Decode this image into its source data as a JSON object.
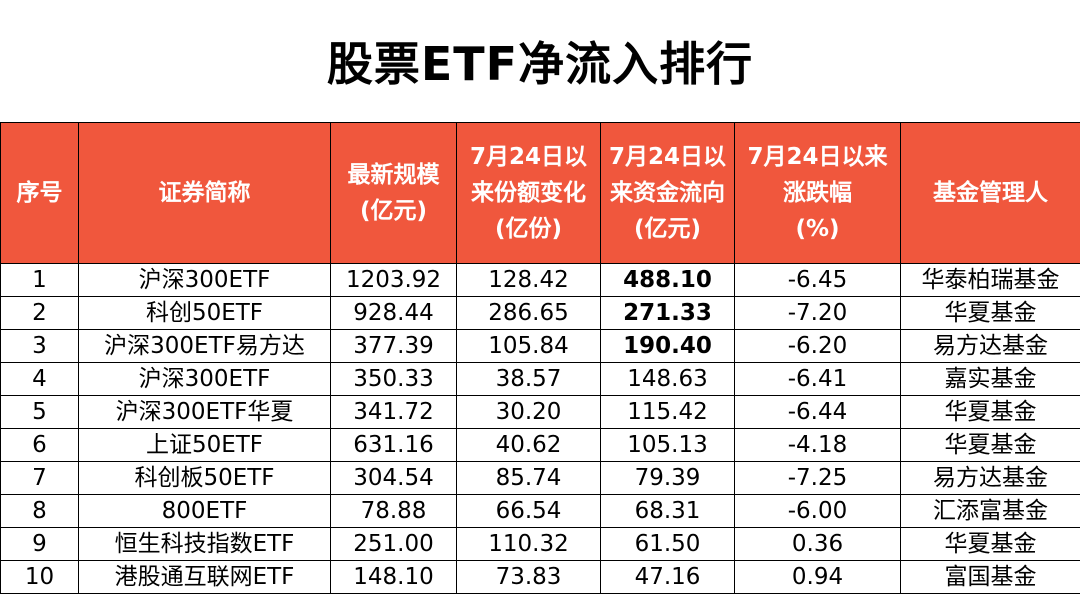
{
  "title": "股票ETF净流入排行",
  "colors": {
    "header_bg": "#f0573d",
    "header_text": "#ffffff",
    "highlight": "#e81818"
  },
  "headers": {
    "rank": "序号",
    "name": "证券简称",
    "scale": [
      "最新规模",
      "(亿元)"
    ],
    "share_change": [
      "7月24日以",
      "来份额变化",
      "(亿份)"
    ],
    "fund_flow": [
      "7月24日以",
      "来资金流向",
      "(亿元)"
    ],
    "change_pct": [
      "7月24日以来",
      "涨跌幅",
      "(%)"
    ],
    "manager": "基金管理人"
  },
  "rows": [
    {
      "rank": "1",
      "name": "沪深300ETF",
      "scale": "1203.92",
      "share_change": "128.42",
      "fund_flow": "488.10",
      "change_pct": "-6.45",
      "manager": "华泰柏瑞基金",
      "flow_style": "bold"
    },
    {
      "rank": "2",
      "name": "科创50ETF",
      "scale": "928.44",
      "share_change": "286.65",
      "fund_flow": "271.33",
      "change_pct": "-7.20",
      "manager": "华夏基金",
      "flow_style": "bold"
    },
    {
      "rank": "3",
      "name": "沪深300ETF易方达",
      "scale": "377.39",
      "share_change": "105.84",
      "fund_flow": "190.40",
      "change_pct": "-6.20",
      "manager": "易方达基金",
      "flow_style": "bold"
    },
    {
      "rank": "4",
      "name": "沪深300ETF",
      "scale": "350.33",
      "share_change": "38.57",
      "fund_flow": "148.63",
      "change_pct": "-6.41",
      "manager": "嘉实基金",
      "flow_style": "red"
    },
    {
      "rank": "5",
      "name": "沪深300ETF华夏",
      "scale": "341.72",
      "share_change": "30.20",
      "fund_flow": "115.42",
      "change_pct": "-6.44",
      "manager": "华夏基金",
      "flow_style": "red"
    },
    {
      "rank": "6",
      "name": "上证50ETF",
      "scale": "631.16",
      "share_change": "40.62",
      "fund_flow": "105.13",
      "change_pct": "-4.18",
      "manager": "华夏基金",
      "flow_style": "red"
    },
    {
      "rank": "7",
      "name": "科创板50ETF",
      "scale": "304.54",
      "share_change": "85.74",
      "fund_flow": "79.39",
      "change_pct": "-7.25",
      "manager": "易方达基金",
      "flow_style": "normal"
    },
    {
      "rank": "8",
      "name": "800ETF",
      "scale": "78.88",
      "share_change": "66.54",
      "fund_flow": "68.31",
      "change_pct": "-6.00",
      "manager": "汇添富基金",
      "flow_style": "normal"
    },
    {
      "rank": "9",
      "name": "恒生科技指数ETF",
      "scale": "251.00",
      "share_change": "110.32",
      "fund_flow": "61.50",
      "change_pct": "0.36",
      "manager": "华夏基金",
      "flow_style": "normal"
    },
    {
      "rank": "10",
      "name": "港股通互联网ETF",
      "scale": "148.10",
      "share_change": "73.83",
      "fund_flow": "47.16",
      "change_pct": "0.94",
      "manager": "富国基金",
      "flow_style": "normal"
    }
  ]
}
